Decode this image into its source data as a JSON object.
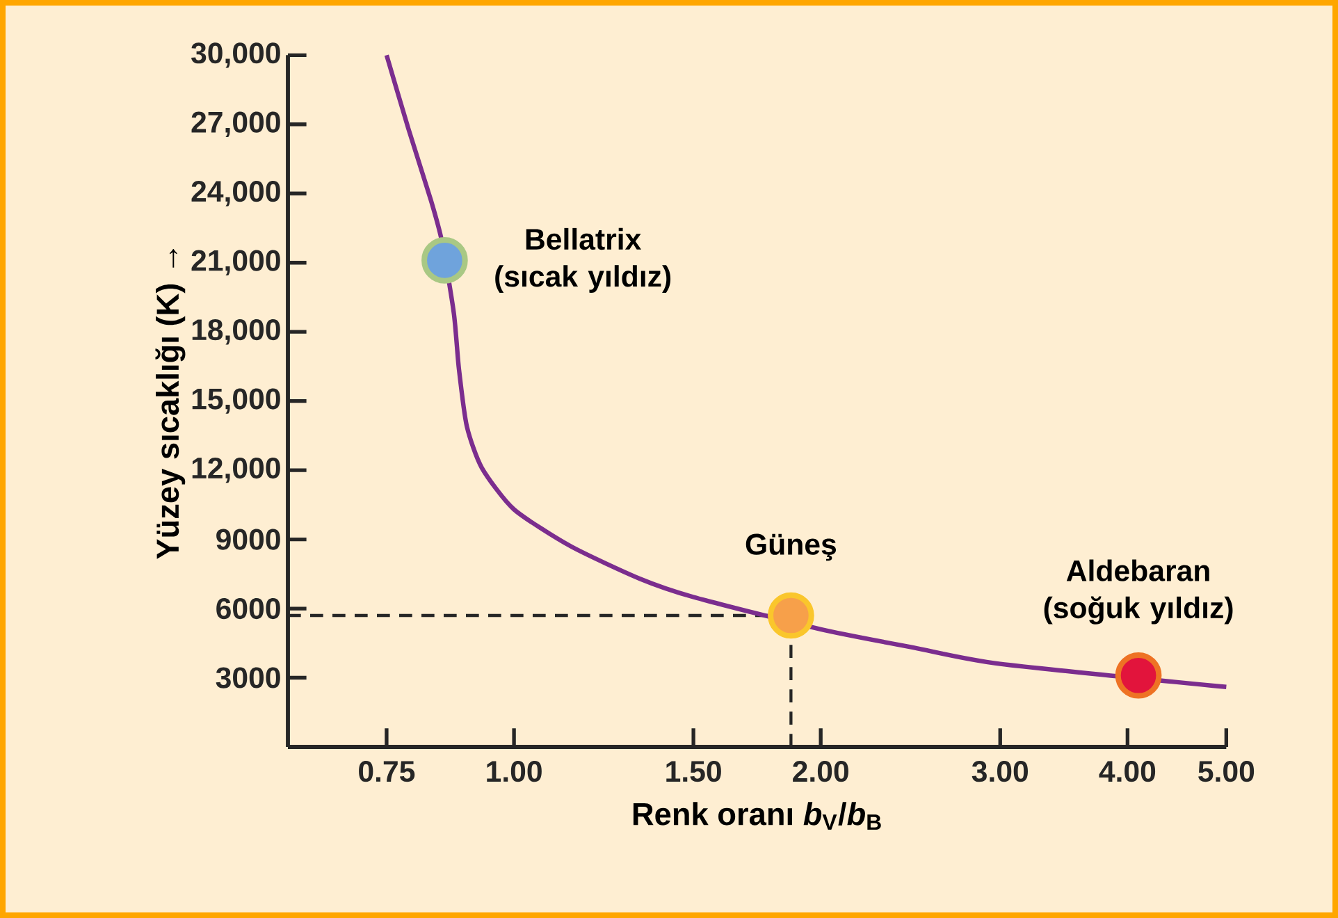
{
  "chart_data": {
    "type": "line",
    "xlabel": "Renk oranı *b*$_{V}$/*b*$_{B}$",
    "ylabel": "Yüzey sıcaklığı (K) →",
    "log": "x",
    "xlim": [
      0.6,
      5.0
    ],
    "xticks": [
      0.75,
      {
        "value": 1,
        "label": "1.00"
      },
      {
        "value": 1.5,
        "label": "1.50"
      },
      {
        "value": 2,
        "label": "2.00"
      },
      {
        "value": 3,
        "label": "3.00"
      },
      {
        "value": 4,
        "label": "4.00"
      },
      {
        "value": 5,
        "label": "5.00"
      }
    ],
    "ylim": [
      0,
      30000
    ],
    "yticks": [
      3000,
      6000,
      9000,
      {
        "value": 12000,
        "label": "12,000"
      },
      {
        "value": 15000,
        "label": "15,000"
      },
      {
        "value": 18000,
        "label": "18,000"
      },
      {
        "value": 21000,
        "label": "21,000"
      },
      {
        "value": 24000,
        "label": "24,000"
      },
      {
        "value": 27000,
        "label": "27,000"
      },
      {
        "value": 30000,
        "label": "30,000"
      }
    ],
    "series": [
      {
        "color": "#7b2d8e",
        "line_style": "solid",
        "marker": "none",
        "x": [
          0.75,
          0.788,
          0.829,
          0.85,
          0.873,
          0.883,
          0.899,
          0.93,
          1.0,
          1.137,
          1.328,
          1.5,
          2.0,
          2.47,
          3.0,
          5.0
        ],
        "values": [
          30000,
          26800,
          23700,
          21900,
          18800,
          16400,
          13900,
          12100,
          10300,
          8700,
          7300,
          6500,
          5100,
          4300,
          3600,
          2600
        ]
      },
      {
        "type": "scatter",
        "color": "#6fa3dc",
        "x": [
          0.855
        ],
        "values": [
          21100
        ]
      },
      {
        "type": "scatter",
        "color": "#f7a04a",
        "x": [
          1.87
        ],
        "values": [
          5700
        ]
      },
      {
        "type": "scatter",
        "color": "#e2143c",
        "x": [
          4.1
        ],
        "values": [
          3100
        ]
      }
    ],
    "ref_lines": [
      {
        "axis": "y",
        "value": 5700,
        "line_style": "dashed"
      },
      {
        "axis": "x",
        "value": 1.87,
        "line_style": "dashed"
      }
    ],
    "annotations": [
      {
        "text": "Bellatrix (sıcak yıldız)",
        "x": 0.855,
        "y": 21100
      },
      {
        "text": "Güneş",
        "x": 1.87,
        "y": 5700
      },
      {
        "text": "Aldebaran (soğuk yıldız)",
        "x": 4.1,
        "y": 3100
      }
    ]
  }
}
